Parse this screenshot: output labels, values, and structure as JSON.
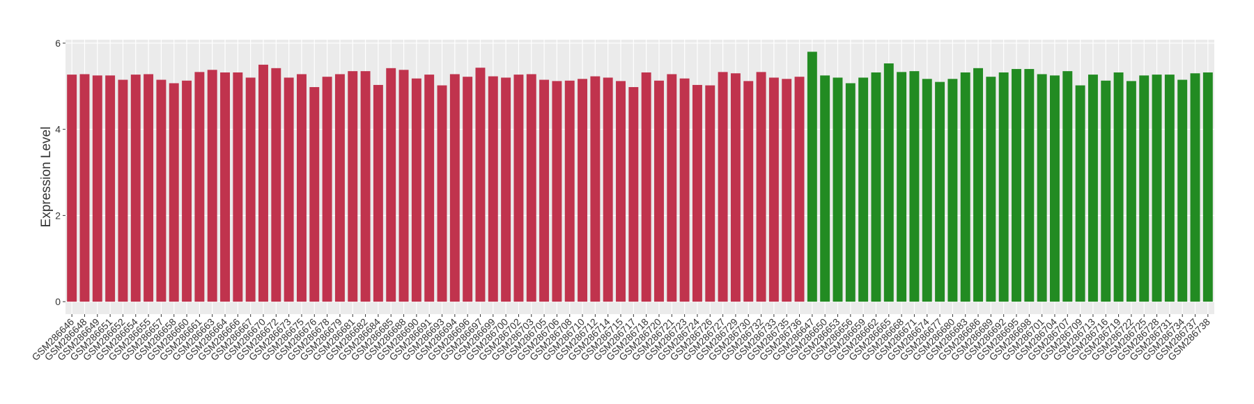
{
  "chart_data": {
    "type": "bar",
    "y_label": "Expression Level",
    "categories": [
      "GSM286646",
      "GSM286648",
      "GSM286649",
      "GSM286651",
      "GSM286652",
      "GSM286654",
      "GSM286655",
      "GSM286657",
      "GSM286658",
      "GSM286660",
      "GSM286661",
      "GSM286663",
      "GSM286664",
      "GSM286666",
      "GSM286667",
      "GSM286670",
      "GSM286672",
      "GSM286673",
      "GSM286675",
      "GSM286676",
      "GSM286678",
      "GSM286679",
      "GSM286681",
      "GSM286682",
      "GSM286684",
      "GSM286685",
      "GSM286688",
      "GSM286690",
      "GSM286691",
      "GSM286693",
      "GSM286694",
      "GSM286696",
      "GSM286697",
      "GSM286699",
      "GSM286700",
      "GSM286702",
      "GSM286703",
      "GSM286705",
      "GSM286706",
      "GSM286708",
      "GSM286710",
      "GSM286712",
      "GSM286714",
      "GSM286715",
      "GSM286717",
      "GSM286718",
      "GSM286720",
      "GSM286721",
      "GSM286723",
      "GSM286724",
      "GSM286726",
      "GSM286727",
      "GSM286729",
      "GSM286730",
      "GSM286732",
      "GSM286733",
      "GSM286735",
      "GSM286736",
      "GSM286647",
      "GSM286650",
      "GSM286653",
      "GSM286656",
      "GSM286659",
      "GSM286662",
      "GSM286665",
      "GSM286668",
      "GSM286671",
      "GSM286674",
      "GSM286677",
      "GSM286680",
      "GSM286683",
      "GSM286686",
      "GSM286689",
      "GSM286692",
      "GSM286695",
      "GSM286698",
      "GSM286701",
      "GSM286704",
      "GSM286707",
      "GSM286709",
      "GSM286713",
      "GSM286716",
      "GSM286719",
      "GSM286722",
      "GSM286725",
      "GSM286728",
      "GSM286731",
      "GSM286734",
      "GSM286737",
      "GSM286738"
    ],
    "series": [
      {
        "color": "#c0334d",
        "values": [
          5.27,
          5.28,
          5.25,
          5.25,
          5.15,
          5.27,
          5.28,
          5.15,
          5.07,
          5.13,
          5.33,
          5.38,
          5.32,
          5.32,
          5.2,
          5.5,
          5.42,
          5.2,
          5.28,
          4.98,
          5.22,
          5.28,
          5.35,
          5.35,
          5.03,
          5.42,
          5.38,
          5.18,
          5.27,
          5.02,
          5.28,
          5.22,
          5.43,
          5.23,
          5.2,
          5.27,
          5.28,
          5.15,
          5.12,
          5.13,
          5.17,
          5.23,
          5.2,
          5.12,
          4.98,
          5.32,
          5.13,
          5.28,
          5.18,
          5.03,
          5.02,
          5.33,
          5.3,
          5.12,
          5.33,
          5.2,
          5.17,
          5.22,
          null,
          null,
          null,
          null,
          null,
          null,
          null,
          null,
          null,
          null,
          null,
          null,
          null,
          null,
          null,
          null,
          null,
          null,
          null,
          null,
          null,
          null,
          null,
          null,
          null,
          null,
          null,
          null,
          null,
          null,
          null,
          null
        ]
      },
      {
        "color": "#228b22",
        "values": [
          null,
          null,
          null,
          null,
          null,
          null,
          null,
          null,
          null,
          null,
          null,
          null,
          null,
          null,
          null,
          null,
          null,
          null,
          null,
          null,
          null,
          null,
          null,
          null,
          null,
          null,
          null,
          null,
          null,
          null,
          null,
          null,
          null,
          null,
          null,
          null,
          null,
          null,
          null,
          null,
          null,
          null,
          null,
          null,
          null,
          null,
          null,
          null,
          null,
          null,
          null,
          null,
          null,
          null,
          null,
          null,
          null,
          null,
          5.8,
          5.25,
          5.2,
          5.07,
          5.2,
          5.32,
          5.53,
          5.33,
          5.35,
          5.17,
          5.1,
          5.17,
          5.32,
          5.42,
          5.22,
          5.32,
          5.4,
          5.4,
          5.28,
          5.25,
          5.35,
          5.02,
          5.27,
          5.13,
          5.32,
          5.12,
          5.25,
          5.27,
          5.27,
          5.15,
          5.3,
          5.32
        ]
      }
    ],
    "ylim": [
      -0.29,
      6.08
    ],
    "yticks": [
      0,
      2,
      4,
      6
    ],
    "grid": true
  }
}
